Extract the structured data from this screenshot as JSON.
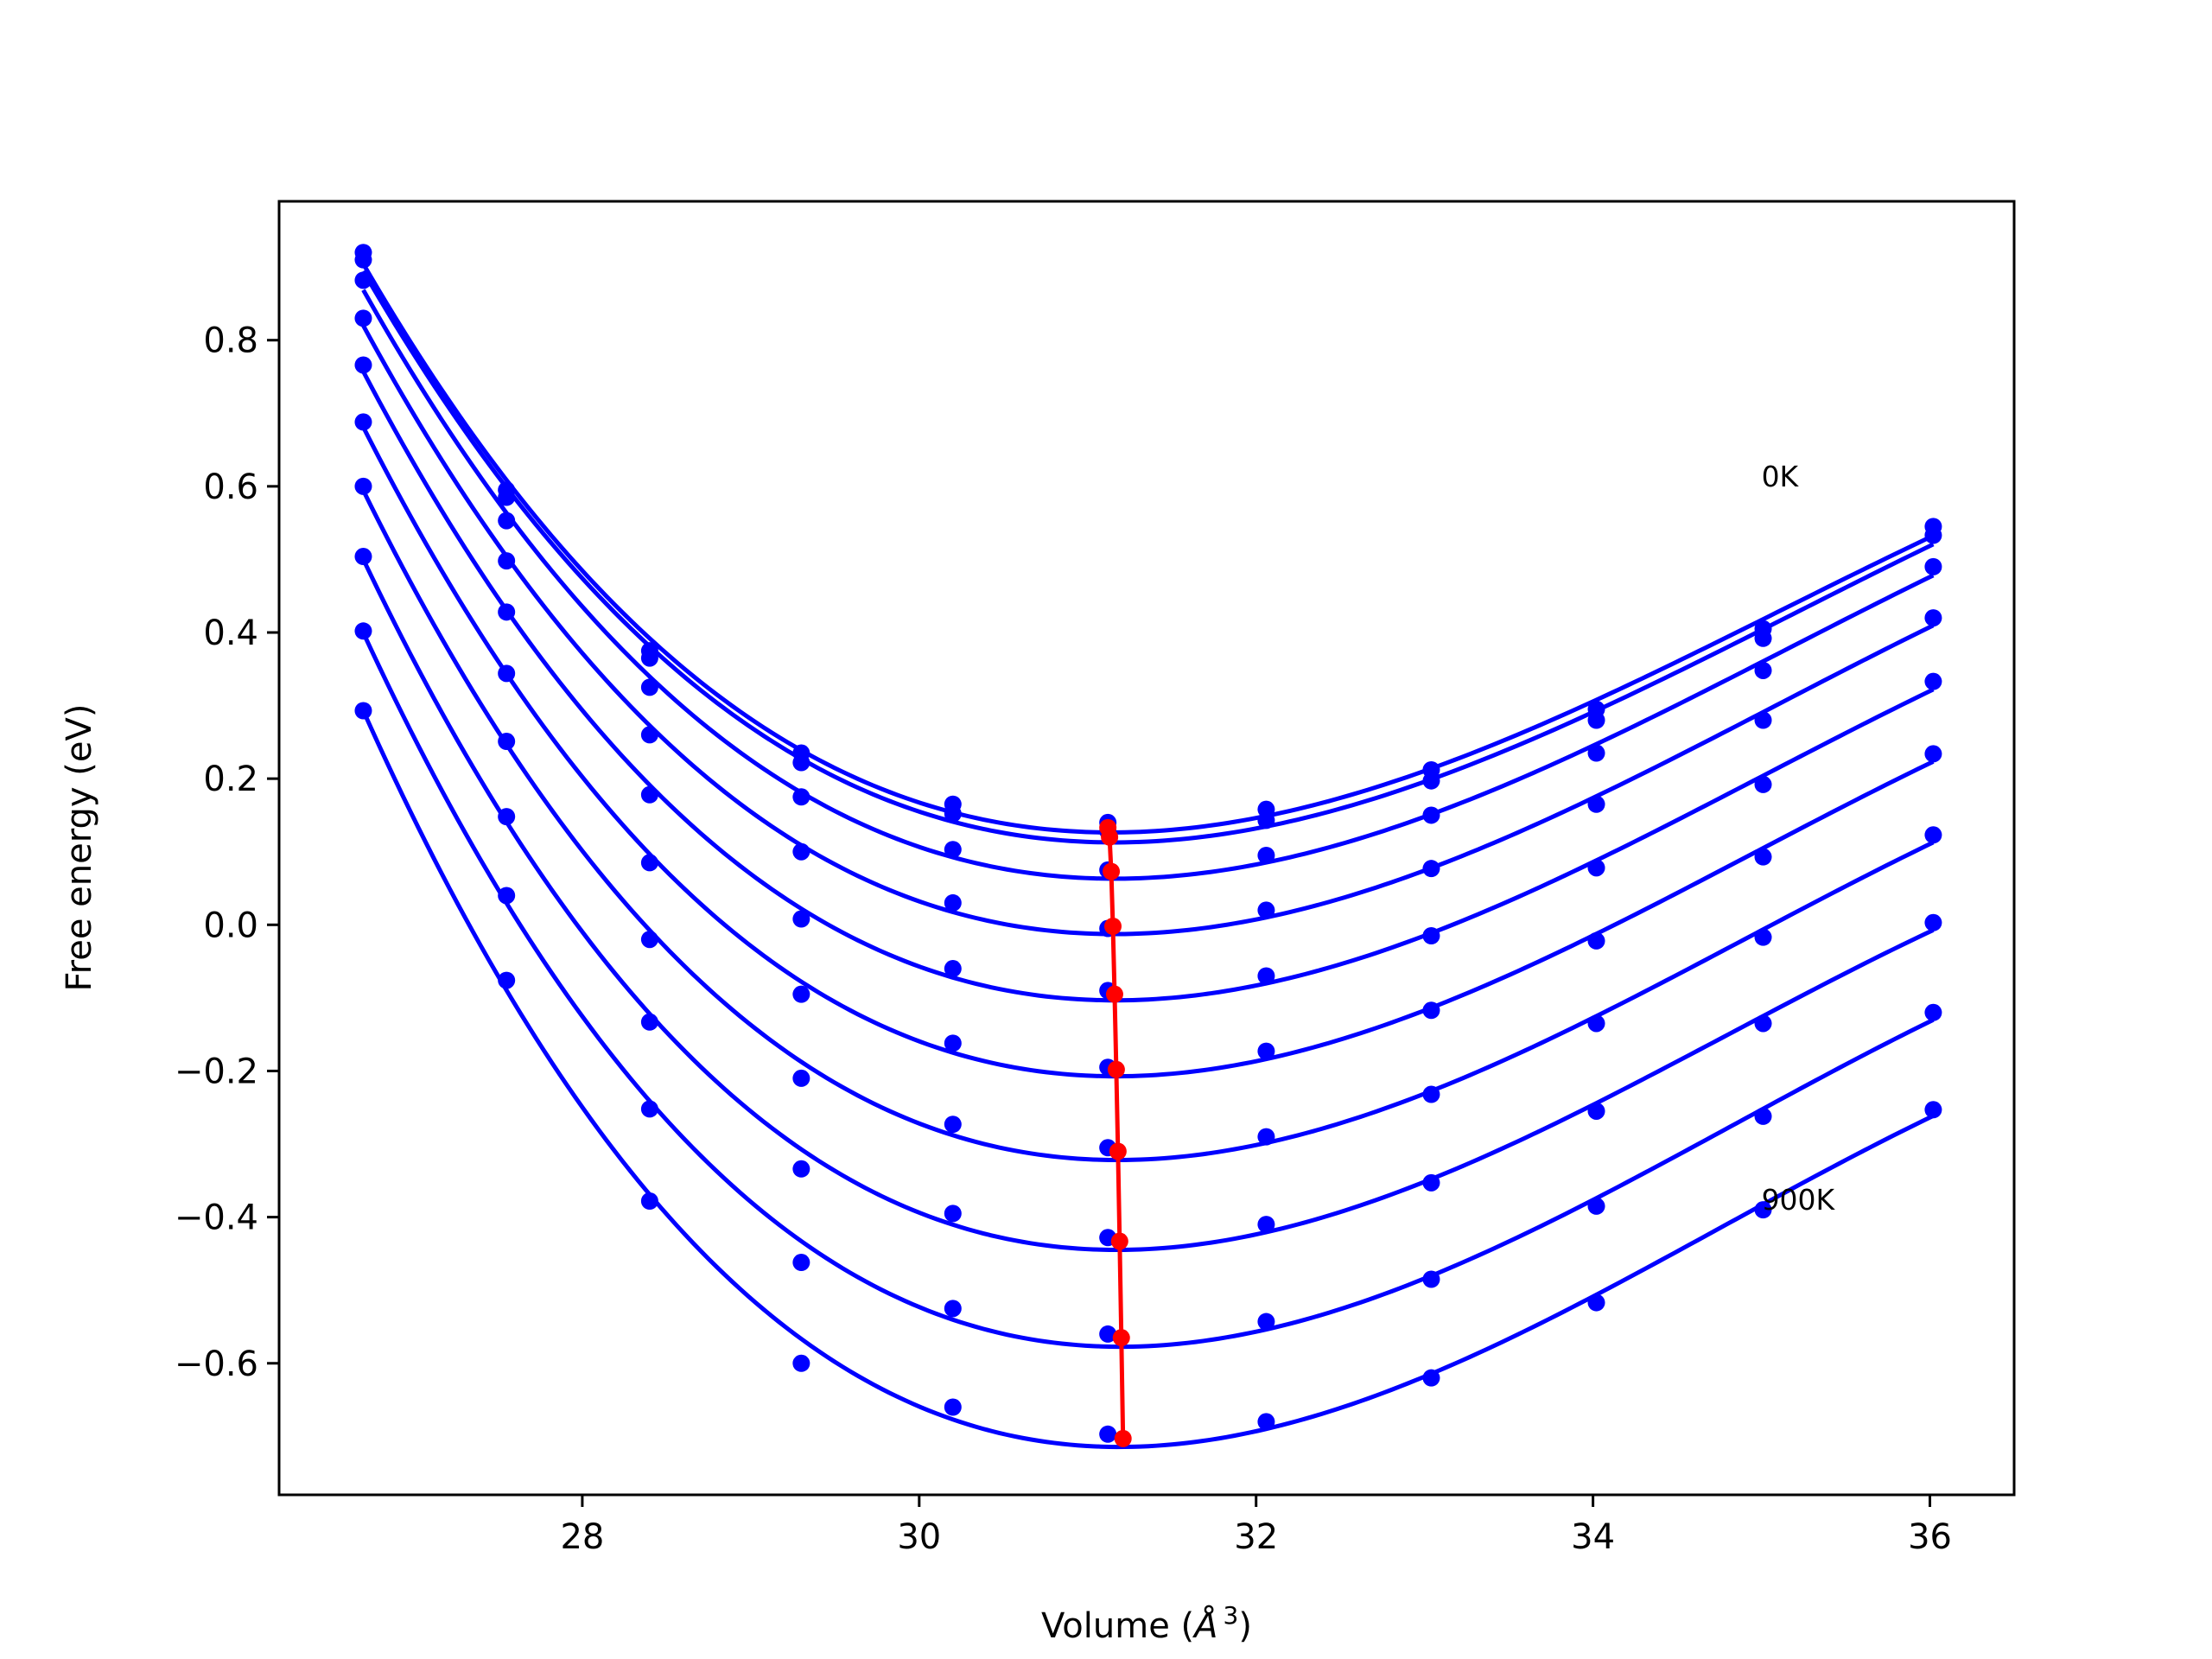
{
  "chart_data": {
    "type": "line",
    "title": "",
    "xlabel": "Volume ($Å^3$)",
    "xlabel_text": "Volume (",
    "xlabel_symbol": "Å",
    "xlabel_exp": "3",
    "xlabel_close": ")",
    "ylabel": "Free energy (eV)",
    "xlim": [
      26.2,
      36.5
    ],
    "ylim": [
      -0.78,
      0.99
    ],
    "xticks": [
      28,
      30,
      32,
      34,
      36
    ],
    "xtick_labels": [
      "28",
      "30",
      "32",
      "34",
      "36"
    ],
    "yticks": [
      -0.6,
      -0.4,
      -0.2,
      0.0,
      0.2,
      0.4,
      0.6,
      0.8
    ],
    "ytick_labels": [
      "−0.6",
      "−0.4",
      "−0.2",
      "0.0",
      "0.2",
      "0.4",
      "0.6",
      "0.8"
    ],
    "grid": false,
    "annotations": [
      {
        "text": "0K",
        "x": 35.0,
        "y": 0.6
      },
      {
        "text": "900K",
        "x": 35.0,
        "y": -0.39
      }
    ],
    "colors": {
      "curves": "#0000ff",
      "minimum_line": "#ff0000",
      "axes": "#000000"
    },
    "x": [
      26.7,
      27.55,
      28.4,
      29.3,
      30.2,
      31.12,
      32.06,
      33.04,
      34.02,
      35.01,
      36.02
    ],
    "series": [
      {
        "values": [
          0.92,
          0.595,
          0.375,
          0.235,
          0.165,
          0.14,
          0.158,
          0.212,
          0.295,
          0.405,
          0.545
        ],
        "min": [
          31.12,
          0.133
        ]
      },
      {
        "values": [
          0.91,
          0.585,
          0.365,
          0.222,
          0.152,
          0.128,
          0.143,
          0.197,
          0.28,
          0.392,
          0.533
        ],
        "min": [
          31.13,
          0.12
        ]
      },
      {
        "values": [
          0.882,
          0.553,
          0.325,
          0.175,
          0.103,
          0.075,
          0.095,
          0.15,
          0.235,
          0.348,
          0.49
        ],
        "min": [
          31.14,
          0.073
        ]
      },
      {
        "values": [
          0.83,
          0.498,
          0.26,
          0.1,
          0.03,
          -0.005,
          0.02,
          0.077,
          0.165,
          0.28,
          0.42
        ],
        "min": [
          31.15,
          -0.002
        ]
      },
      {
        "values": [
          0.766,
          0.428,
          0.178,
          0.008,
          -0.06,
          -0.09,
          -0.07,
          -0.015,
          0.078,
          0.192,
          0.333
        ],
        "min": [
          31.16,
          -0.095
        ]
      },
      {
        "values": [
          0.688,
          0.344,
          0.085,
          -0.095,
          -0.162,
          -0.195,
          -0.173,
          -0.117,
          -0.022,
          0.093,
          0.234
        ],
        "min": [
          31.17,
          -0.198
        ]
      },
      {
        "values": [
          0.6,
          0.251,
          -0.02,
          -0.21,
          -0.273,
          -0.305,
          -0.29,
          -0.232,
          -0.135,
          -0.017,
          0.123
        ],
        "min": [
          31.18,
          -0.31
        ]
      },
      {
        "values": [
          0.504,
          0.148,
          -0.133,
          -0.334,
          -0.395,
          -0.428,
          -0.41,
          -0.353,
          -0.255,
          -0.135,
          0.003
        ],
        "min": [
          31.19,
          -0.433
        ]
      },
      {
        "values": [
          0.402,
          0.04,
          -0.252,
          -0.462,
          -0.525,
          -0.56,
          -0.543,
          -0.485,
          -0.385,
          -0.262,
          -0.12
        ],
        "min": [
          31.2,
          -0.565
        ]
      },
      {
        "values": [
          0.293,
          -0.076,
          -0.378,
          -0.6,
          -0.66,
          -0.697,
          -0.68,
          -0.62,
          -0.517,
          -0.39,
          -0.253
        ],
        "min": [
          31.21,
          -0.703
        ]
      }
    ]
  }
}
